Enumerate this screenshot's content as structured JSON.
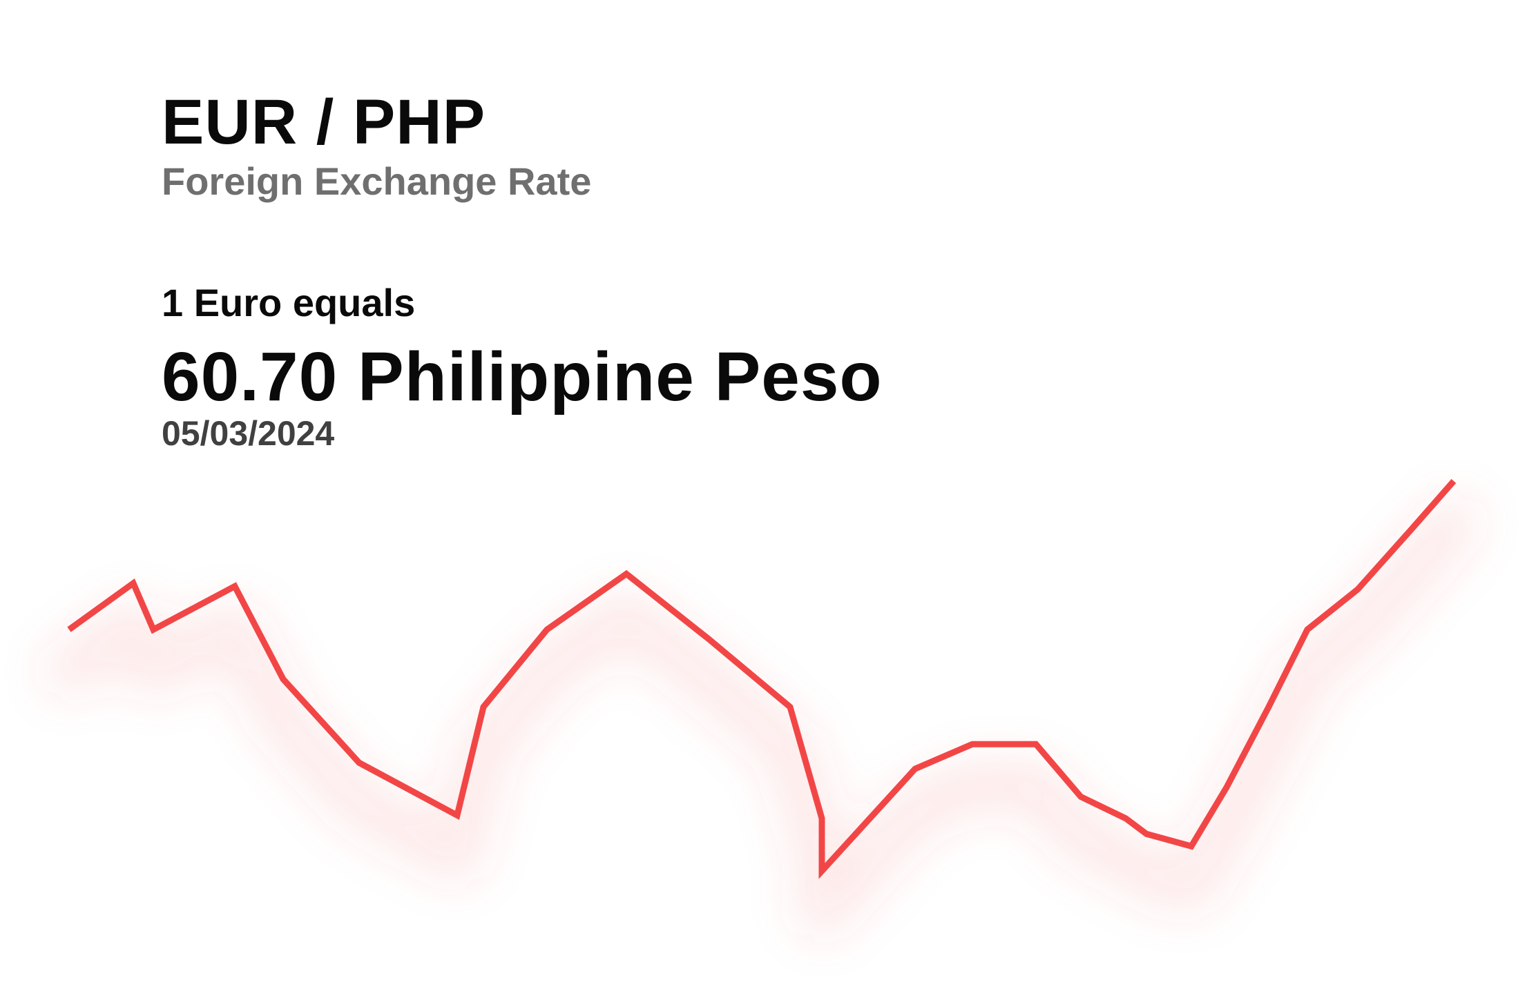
{
  "header": {
    "pair": "EUR / PHP",
    "subtitle": "Foreign Exchange Rate"
  },
  "quote": {
    "lead": "1 Euro equals",
    "rate_text": "60.70 Philippine Peso",
    "date": "05/03/2024"
  },
  "colors": {
    "line": "#f24646",
    "glow": "#f24646",
    "background": "#ffffff"
  },
  "chart_data": {
    "type": "line",
    "title": "",
    "xlabel": "",
    "ylabel": "",
    "grid": false,
    "axes_visible": false,
    "series": [
      {
        "values": [
          60.22,
          60.37,
          60.22,
          60.36,
          60.06,
          59.79,
          59.62,
          59.97,
          60.22,
          60.4,
          60.19,
          59.97,
          59.61,
          59.44,
          59.77,
          59.85,
          59.85,
          59.68,
          59.61,
          59.56,
          59.52,
          59.71,
          59.97,
          60.22,
          60.35,
          60.55,
          60.7
        ]
      }
    ]
  }
}
